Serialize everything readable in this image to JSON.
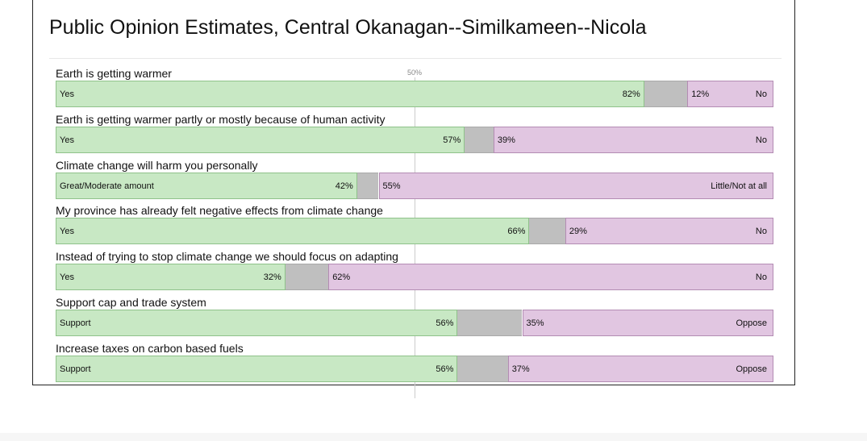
{
  "chart_data": {
    "type": "bar",
    "stacked": true,
    "orientation": "horizontal",
    "title": "Public Opinion Estimates, Central Okanagan--Similkameen--Nicola",
    "midline_label": "50%",
    "xlim": [
      0,
      100
    ],
    "colors": {
      "positive": "#c8e8c4",
      "neutral": "#bfbfbf",
      "negative": "#e1c6e1"
    },
    "questions": [
      {
        "question": "Earth is getting warmer",
        "positive_label": "Yes",
        "negative_label": "No",
        "positive": 82,
        "negative": 12,
        "positive_text": "82%",
        "negative_text": "12%"
      },
      {
        "question": "Earth is getting warmer partly or mostly because of human activity",
        "positive_label": "Yes",
        "negative_label": "No",
        "positive": 57,
        "negative": 39,
        "positive_text": "57%",
        "negative_text": "39%"
      },
      {
        "question": "Climate change will harm you personally",
        "positive_label": "Great/Moderate amount",
        "negative_label": "Little/Not at all",
        "positive": 42,
        "negative": 55,
        "positive_text": "42%",
        "negative_text": "55%"
      },
      {
        "question": "My province has already felt negative effects from climate change",
        "positive_label": "Yes",
        "negative_label": "No",
        "positive": 66,
        "negative": 29,
        "positive_text": "66%",
        "negative_text": "29%"
      },
      {
        "question": "Instead of trying to stop climate change we should focus on adapting",
        "positive_label": "Yes",
        "negative_label": "No",
        "positive": 32,
        "negative": 62,
        "positive_text": "32%",
        "negative_text": "62%"
      },
      {
        "question": "Support cap and trade system",
        "positive_label": "Support",
        "negative_label": "Oppose",
        "positive": 56,
        "negative": 35,
        "positive_text": "56%",
        "negative_text": "35%"
      },
      {
        "question": "Increase taxes on carbon based fuels",
        "positive_label": "Support",
        "negative_label": "Oppose",
        "positive": 56,
        "negative": 37,
        "positive_text": "56%",
        "negative_text": "37%"
      }
    ]
  }
}
